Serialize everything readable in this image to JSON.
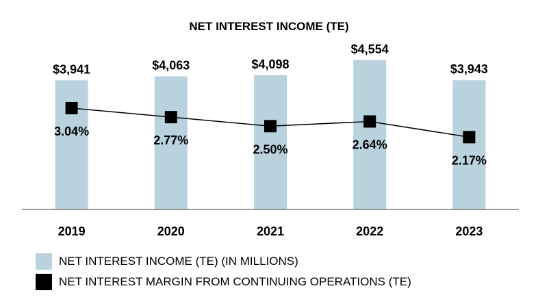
{
  "chart_data": {
    "type": "bar",
    "title": "NET INTEREST INCOME (TE)",
    "categories": [
      "2019",
      "2020",
      "2021",
      "2022",
      "2023"
    ],
    "series": [
      {
        "name": "NET INTEREST INCOME (TE) (IN MILLIONS)",
        "type": "bar",
        "values": [
          3941,
          4063,
          4098,
          4554,
          3943
        ],
        "labels": [
          "$3,941",
          "$4,063",
          "$4,098",
          "$4,554",
          "$3,943"
        ],
        "color": "#b9d2de"
      },
      {
        "name": "NET INTEREST MARGIN FROM CONTINUING OPERATIONS (TE)",
        "type": "line",
        "values": [
          3.04,
          2.77,
          2.5,
          2.64,
          2.17
        ],
        "labels": [
          "3.04%",
          "2.77%",
          "2.50%",
          "2.64%",
          "2.17%"
        ],
        "color": "#000000"
      }
    ],
    "ylim_bars": [
      0,
      5000
    ],
    "ylim_line": [
      0,
      3.85
    ],
    "xlabel": "",
    "ylabel": "",
    "grid": false,
    "legend_position": "bottom-left"
  }
}
